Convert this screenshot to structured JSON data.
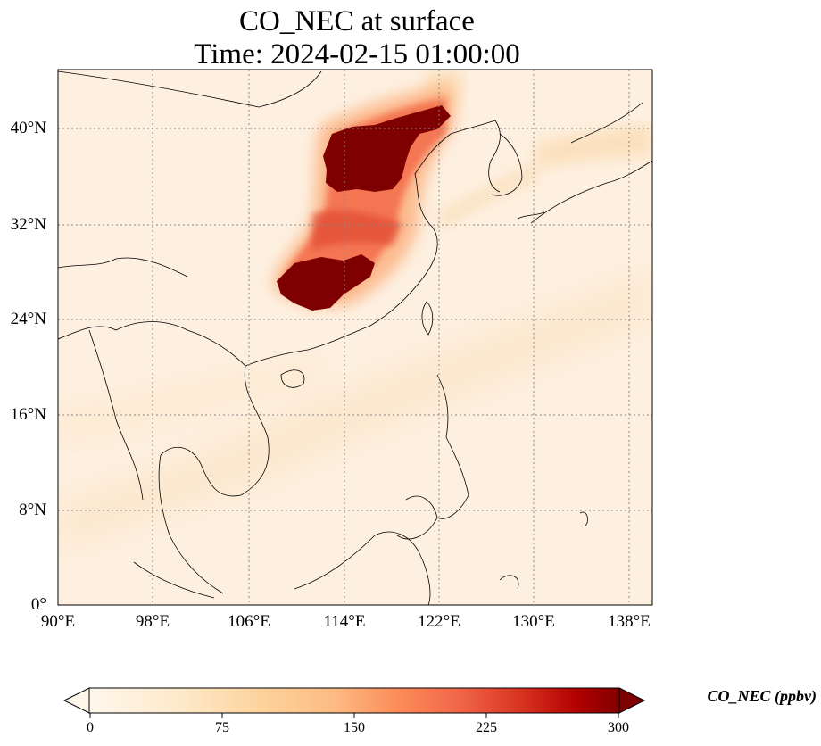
{
  "title": {
    "line1": "CO_NEC at surface",
    "line2": "Time: 2024-02-15 01:00:00"
  },
  "map": {
    "lon_range": [
      90,
      140
    ],
    "lat_range": [
      0,
      44
    ],
    "lat_ticks": [
      "0°",
      "8°N",
      "16°N",
      "24°N",
      "32°N",
      "40°N"
    ],
    "lon_ticks": [
      "90°E",
      "98°E",
      "106°E",
      "114°E",
      "122°E",
      "130°E",
      "138°E"
    ],
    "gridlines": true,
    "colormap": "OrRd"
  },
  "colorbar": {
    "label": "CO_NEC (ppbv)",
    "ticks": [
      "0",
      "75",
      "150",
      "225",
      "300"
    ],
    "extend": "both",
    "colors": [
      "#fff7ec",
      "#fdd49e",
      "#fc8d59",
      "#d7301f",
      "#7f0000"
    ]
  }
}
